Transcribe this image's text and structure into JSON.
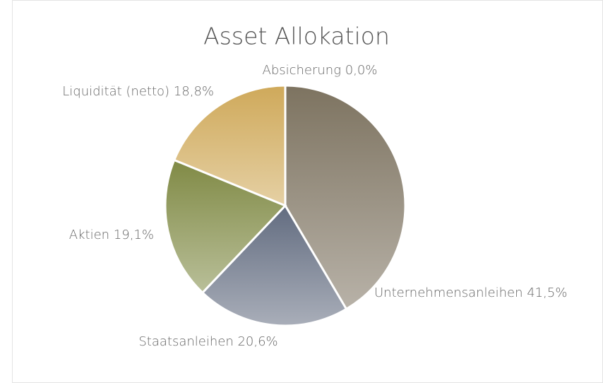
{
  "chart_data": {
    "type": "pie",
    "title": "Asset Allokation",
    "categories": [
      "Unternehmensanleihen",
      "Staatsanleihen",
      "Aktien",
      "Liquidität (netto)",
      "Absicherung"
    ],
    "values": [
      41.5,
      20.6,
      19.1,
      18.8,
      0.0
    ],
    "value_labels": [
      "41,5%",
      "20,6%",
      "19,1%",
      "18,8%",
      "0,0%"
    ],
    "colors": [
      "#7d7360",
      "#626c80",
      "#808a45",
      "#cfa95a",
      "#9a9a9a"
    ]
  }
}
